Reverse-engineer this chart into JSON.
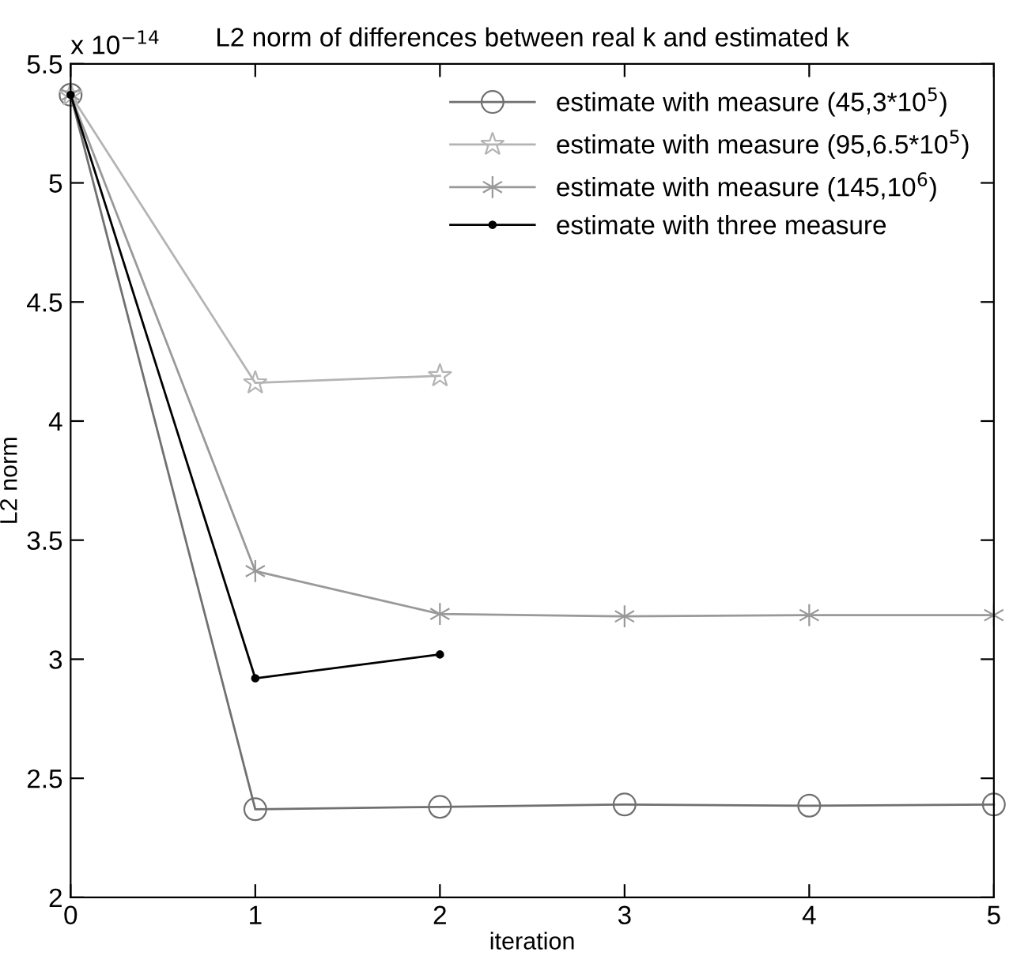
{
  "chart_data": {
    "type": "line",
    "title": "L2 norm of differences between real k and estimated k",
    "xlabel": "iteration",
    "ylabel": "L2 norm",
    "annotations": [
      "x 10$^{−14}$"
    ],
    "xlim": [
      0,
      5
    ],
    "xticks": [
      0,
      1,
      2,
      3,
      4,
      5
    ],
    "ylim": [
      2,
      5.5
    ],
    "yticks": [
      2,
      2.5,
      3,
      3.5,
      4,
      4.5,
      5,
      5.5
    ],
    "grid": false,
    "legend": "top right",
    "line_style": "solid",
    "series": [
      {
        "name": "estimate with measure (45,3*10$^{5}$)",
        "color": "#707070",
        "marker": "circle",
        "x": [
          0,
          1,
          2,
          3,
          4,
          5
        ],
        "values": [
          5.37,
          2.37,
          2.38,
          2.39,
          2.385,
          2.39
        ]
      },
      {
        "name": "estimate with measure (95,6.5*10$^{5}$)",
        "color": "#b4b4b4",
        "marker": "star",
        "x": [
          0,
          1,
          2
        ],
        "values": [
          5.37,
          4.16,
          4.19
        ]
      },
      {
        "name": "estimate with measure (145,10$^{6}$)",
        "color": "#999999",
        "marker": "cross",
        "x": [
          0,
          1,
          2,
          3,
          4,
          5
        ],
        "values": [
          5.37,
          3.37,
          3.19,
          3.18,
          3.185,
          3.185
        ]
      },
      {
        "name": "estimate with three measure",
        "color": "#000000",
        "marker": "dot",
        "x": [
          0,
          1,
          2
        ],
        "values": [
          5.37,
          2.92,
          3.02
        ]
      }
    ]
  }
}
